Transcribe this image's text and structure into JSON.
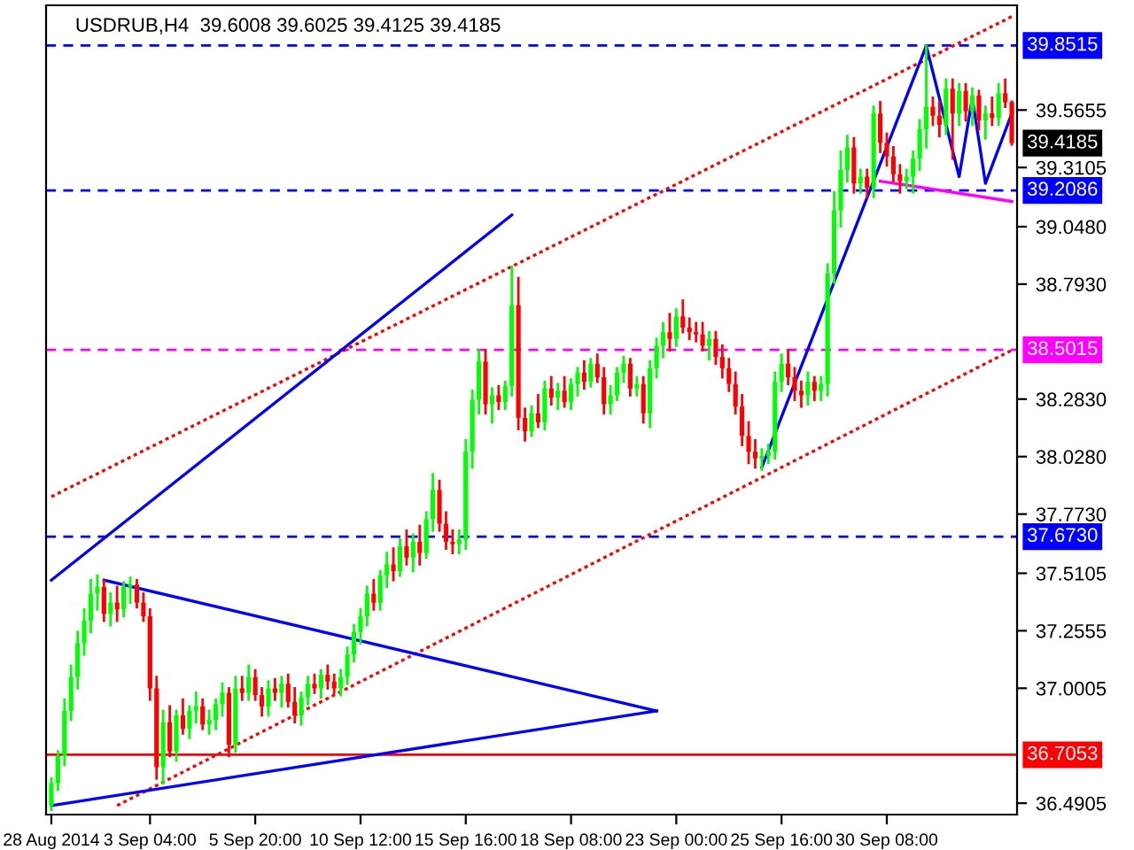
{
  "chart_data": {
    "type": "candlestick",
    "title": "USDRUB,H4  39.6008 39.6025 39.4125 39.4185",
    "categories": [
      "28 Aug 2014",
      null,
      null,
      null,
      null,
      null,
      null,
      null,
      null,
      null,
      null,
      null,
      null,
      null,
      null,
      "3 Sep 04:00",
      null,
      null,
      null,
      null,
      null,
      null,
      null,
      null,
      null,
      null,
      null,
      null,
      null,
      null,
      null,
      "5 Sep 20:00",
      null,
      null,
      null,
      null,
      null,
      null,
      null,
      null,
      null,
      null,
      null,
      null,
      null,
      null,
      null,
      "10 Sep 12:00",
      null,
      null,
      null,
      null,
      null,
      null,
      null,
      null,
      null,
      null,
      null,
      null,
      null,
      null,
      null,
      "15 Sep 16:00",
      null,
      null,
      null,
      null,
      null,
      null,
      null,
      null,
      null,
      null,
      null,
      null,
      null,
      null,
      null,
      "18 Sep 08:00",
      null,
      null,
      null,
      null,
      null,
      null,
      null,
      null,
      null,
      null,
      null,
      null,
      null,
      null,
      null,
      "23 Sep 00:00",
      null,
      null,
      null,
      null,
      null,
      null,
      null,
      null,
      null,
      null,
      null,
      null,
      null,
      null,
      null,
      "25 Sep 16:00",
      null,
      null,
      null,
      null,
      null,
      null,
      null,
      null,
      null,
      null,
      null,
      null,
      null,
      null,
      null,
      "30 Sep 08:00",
      null,
      null,
      null,
      null,
      null,
      null,
      null,
      null,
      null,
      null,
      null,
      null,
      null,
      null,
      null,
      null,
      null,
      null,
      null
    ],
    "ohlc": [
      [
        36.48,
        36.6,
        36.46,
        36.58
      ],
      [
        36.58,
        36.72,
        36.55,
        36.7
      ],
      [
        36.7,
        36.95,
        36.66,
        36.9
      ],
      [
        36.9,
        37.1,
        36.86,
        37.05
      ],
      [
        37.05,
        37.25,
        37.0,
        37.2
      ],
      [
        37.2,
        37.35,
        37.15,
        37.3
      ],
      [
        37.3,
        37.48,
        37.25,
        37.42
      ],
      [
        37.42,
        37.5,
        37.35,
        37.45
      ],
      [
        37.45,
        37.48,
        37.3,
        37.33
      ],
      [
        37.33,
        37.42,
        37.28,
        37.38
      ],
      [
        37.38,
        37.45,
        37.3,
        37.35
      ],
      [
        37.35,
        37.47,
        37.32,
        37.45
      ],
      [
        37.45,
        37.49,
        37.38,
        37.46
      ],
      [
        37.46,
        37.48,
        37.36,
        37.38
      ],
      [
        37.38,
        37.42,
        37.3,
        37.32
      ],
      [
        37.32,
        37.35,
        36.95,
        37.0
      ],
      [
        37.0,
        37.05,
        36.6,
        36.65
      ],
      [
        36.65,
        36.9,
        36.58,
        36.85
      ],
      [
        36.85,
        36.92,
        36.7,
        36.72
      ],
      [
        36.72,
        36.9,
        36.68,
        36.88
      ],
      [
        36.88,
        36.95,
        36.8,
        36.82
      ],
      [
        36.82,
        36.92,
        36.78,
        36.9
      ],
      [
        36.9,
        36.98,
        36.85,
        36.92
      ],
      [
        36.92,
        36.95,
        36.82,
        36.84
      ],
      [
        36.84,
        36.9,
        36.8,
        36.86
      ],
      [
        36.86,
        36.95,
        36.82,
        36.93
      ],
      [
        36.93,
        37.02,
        36.88,
        36.98
      ],
      [
        36.98,
        37.0,
        36.7,
        36.75
      ],
      [
        36.75,
        37.05,
        36.72,
        37.0
      ],
      [
        37.0,
        37.05,
        36.95,
        36.98
      ],
      [
        36.98,
        37.1,
        36.95,
        37.05
      ],
      [
        37.05,
        37.08,
        36.95,
        36.97
      ],
      [
        36.97,
        37.0,
        36.88,
        36.92
      ],
      [
        36.92,
        37.03,
        36.88,
        37.0
      ],
      [
        37.0,
        37.04,
        36.95,
        36.98
      ],
      [
        36.98,
        37.05,
        36.92,
        37.02
      ],
      [
        37.02,
        37.06,
        36.92,
        36.94
      ],
      [
        36.94,
        37.0,
        36.85,
        36.88
      ],
      [
        36.88,
        36.98,
        36.84,
        36.96
      ],
      [
        36.96,
        37.05,
        36.93,
        37.02
      ],
      [
        37.02,
        37.06,
        36.98,
        37.0
      ],
      [
        37.0,
        37.08,
        36.96,
        37.06
      ],
      [
        37.06,
        37.1,
        37.0,
        37.03
      ],
      [
        37.03,
        37.06,
        36.98,
        37.0
      ],
      [
        37.0,
        37.08,
        36.97,
        37.05
      ],
      [
        37.05,
        37.18,
        37.02,
        37.15
      ],
      [
        37.15,
        37.28,
        37.12,
        37.25
      ],
      [
        37.25,
        37.35,
        37.2,
        37.32
      ],
      [
        37.32,
        37.45,
        37.28,
        37.42
      ],
      [
        37.42,
        37.48,
        37.35,
        37.38
      ],
      [
        37.38,
        37.52,
        37.35,
        37.5
      ],
      [
        37.5,
        37.6,
        37.45,
        37.55
      ],
      [
        37.55,
        37.62,
        37.48,
        37.52
      ],
      [
        37.52,
        37.66,
        37.5,
        37.63
      ],
      [
        37.63,
        37.7,
        37.55,
        37.58
      ],
      [
        37.58,
        37.68,
        37.52,
        37.65
      ],
      [
        37.65,
        37.72,
        37.55,
        37.6
      ],
      [
        37.6,
        37.78,
        37.58,
        37.75
      ],
      [
        37.75,
        37.95,
        37.7,
        37.88
      ],
      [
        37.88,
        37.92,
        37.7,
        37.73
      ],
      [
        37.73,
        37.78,
        37.62,
        37.65
      ],
      [
        37.65,
        37.7,
        37.6,
        37.64
      ],
      [
        37.64,
        37.7,
        37.6,
        37.66
      ],
      [
        37.66,
        38.1,
        37.62,
        38.05
      ],
      [
        38.05,
        38.32,
        37.98,
        38.28
      ],
      [
        38.28,
        38.5,
        38.22,
        38.45
      ],
      [
        38.45,
        38.5,
        38.22,
        38.26
      ],
      [
        38.26,
        38.33,
        38.18,
        38.3
      ],
      [
        38.3,
        38.34,
        38.24,
        38.27
      ],
      [
        38.27,
        38.36,
        38.24,
        38.34
      ],
      [
        38.34,
        38.87,
        38.3,
        38.7
      ],
      [
        38.7,
        38.82,
        38.15,
        38.2
      ],
      [
        38.2,
        38.24,
        38.1,
        38.14
      ],
      [
        38.14,
        38.25,
        38.12,
        38.22
      ],
      [
        38.22,
        38.3,
        38.16,
        38.18
      ],
      [
        38.18,
        38.36,
        38.15,
        38.33
      ],
      [
        38.33,
        38.38,
        38.26,
        38.29
      ],
      [
        38.29,
        38.35,
        38.24,
        38.32
      ],
      [
        38.32,
        38.38,
        38.25,
        38.27
      ],
      [
        38.27,
        38.37,
        38.24,
        38.35
      ],
      [
        38.35,
        38.42,
        38.3,
        38.4
      ],
      [
        38.4,
        38.45,
        38.33,
        38.36
      ],
      [
        38.36,
        38.46,
        38.34,
        38.44
      ],
      [
        38.44,
        38.48,
        38.36,
        38.38
      ],
      [
        38.38,
        38.42,
        38.22,
        38.26
      ],
      [
        38.26,
        38.34,
        38.22,
        38.3
      ],
      [
        38.3,
        38.42,
        38.28,
        38.4
      ],
      [
        38.4,
        38.47,
        38.36,
        38.44
      ],
      [
        38.44,
        38.46,
        38.3,
        38.33
      ],
      [
        38.33,
        38.38,
        38.3,
        38.35
      ],
      [
        38.35,
        38.38,
        38.18,
        38.22
      ],
      [
        38.22,
        38.45,
        38.16,
        38.42
      ],
      [
        38.42,
        38.55,
        38.38,
        38.52
      ],
      [
        38.52,
        38.62,
        38.47,
        38.58
      ],
      [
        38.58,
        38.66,
        38.5,
        38.55
      ],
      [
        38.55,
        38.68,
        38.52,
        38.65
      ],
      [
        38.65,
        38.72,
        38.58,
        38.6
      ],
      [
        38.6,
        38.64,
        38.55,
        38.58
      ],
      [
        38.58,
        38.62,
        38.54,
        38.57
      ],
      [
        38.57,
        38.62,
        38.5,
        38.52
      ],
      [
        38.52,
        38.58,
        38.46,
        38.55
      ],
      [
        38.55,
        38.58,
        38.44,
        38.47
      ],
      [
        38.47,
        38.52,
        38.38,
        38.42
      ],
      [
        38.42,
        38.46,
        38.32,
        38.35
      ],
      [
        38.35,
        38.4,
        38.22,
        38.25
      ],
      [
        38.25,
        38.3,
        38.08,
        38.12
      ],
      [
        38.12,
        38.18,
        38.0,
        38.05
      ],
      [
        38.05,
        38.1,
        37.98,
        38.02
      ],
      [
        38.02,
        38.06,
        37.97,
        38.03
      ],
      [
        38.03,
        38.08,
        38.0,
        38.05
      ],
      [
        38.05,
        38.4,
        38.02,
        38.36
      ],
      [
        38.36,
        38.48,
        38.32,
        38.44
      ],
      [
        38.44,
        38.5,
        38.35,
        38.38
      ],
      [
        38.38,
        38.42,
        38.28,
        38.32
      ],
      [
        38.32,
        38.36,
        38.25,
        38.3
      ],
      [
        38.3,
        38.4,
        38.26,
        38.36
      ],
      [
        38.36,
        38.38,
        38.28,
        38.32
      ],
      [
        38.32,
        38.38,
        38.28,
        38.35
      ],
      [
        38.35,
        38.88,
        38.3,
        38.84
      ],
      [
        38.84,
        39.2,
        38.8,
        39.12
      ],
      [
        39.12,
        39.38,
        39.05,
        39.3
      ],
      [
        39.3,
        39.45,
        39.25,
        39.4
      ],
      [
        39.4,
        39.44,
        39.2,
        39.24
      ],
      [
        39.24,
        39.3,
        39.2,
        39.27
      ],
      [
        39.27,
        39.3,
        39.18,
        39.22
      ],
      [
        39.22,
        39.58,
        39.18,
        39.55
      ],
      [
        39.55,
        39.6,
        39.38,
        39.42
      ],
      [
        39.42,
        39.46,
        39.32,
        39.36
      ],
      [
        39.36,
        39.4,
        39.25,
        39.28
      ],
      [
        39.28,
        39.32,
        39.2,
        39.25
      ],
      [
        39.25,
        39.3,
        39.22,
        39.27
      ],
      [
        39.27,
        39.38,
        39.2,
        39.35
      ],
      [
        39.35,
        39.52,
        39.3,
        39.48
      ],
      [
        39.48,
        39.85,
        39.4,
        39.58
      ],
      [
        39.58,
        39.62,
        39.5,
        39.54
      ],
      [
        39.54,
        39.6,
        39.45,
        39.5
      ],
      [
        39.5,
        39.7,
        39.46,
        39.66
      ],
      [
        39.66,
        39.7,
        39.35,
        39.55
      ],
      [
        39.55,
        39.68,
        39.5,
        39.65
      ],
      [
        39.65,
        39.68,
        39.52,
        39.56
      ],
      [
        39.56,
        39.66,
        39.5,
        39.63
      ],
      [
        39.63,
        39.65,
        39.48,
        39.52
      ],
      [
        39.52,
        39.58,
        39.44,
        39.55
      ],
      [
        39.55,
        39.62,
        39.5,
        39.53
      ],
      [
        39.53,
        39.68,
        39.5,
        39.64
      ],
      [
        39.64,
        39.7,
        39.58,
        39.6
      ],
      [
        39.6008,
        39.6025,
        39.4125,
        39.4185
      ]
    ],
    "series": [
      {
        "type": "line",
        "color": "#ff0000",
        "line_style": "dotted",
        "values": [
          37.85,
          null,
          null,
          null,
          null,
          null,
          null,
          null,
          null,
          null,
          null,
          null,
          null,
          null,
          null,
          null,
          null,
          null,
          null,
          null,
          null,
          null,
          null,
          null,
          null,
          null,
          null,
          null,
          null,
          null,
          null,
          null,
          null,
          null,
          null,
          null,
          null,
          null,
          null,
          null,
          null,
          null,
          null,
          null,
          null,
          null,
          null,
          null,
          null,
          null,
          null,
          null,
          null,
          null,
          null,
          null,
          null,
          null,
          null,
          null,
          null,
          null,
          null,
          null,
          null,
          null,
          null,
          null,
          null,
          null,
          null,
          null,
          null,
          null,
          null,
          null,
          null,
          null,
          null,
          null,
          null,
          null,
          null,
          null,
          null,
          null,
          null,
          null,
          null,
          null,
          null,
          null,
          null,
          null,
          null,
          null,
          null,
          null,
          null,
          null,
          null,
          null,
          null,
          null,
          null,
          null,
          null,
          null,
          null,
          null,
          null,
          null,
          null,
          null,
          null,
          null,
          null,
          null,
          null,
          null,
          null,
          null,
          null,
          null,
          null,
          null,
          null,
          null,
          null,
          null,
          null,
          null,
          null,
          null,
          null,
          null,
          null,
          null,
          null,
          null,
          null,
          null,
          null,
          null,
          null,
          null,
          39.98
        ]
      },
      {
        "type": "line",
        "color": "#ff0000",
        "line_style": "dotted",
        "values": [
          null,
          null,
          null,
          null,
          null,
          null,
          null,
          null,
          null,
          null,
          36.48,
          null,
          null,
          null,
          null,
          null,
          null,
          null,
          null,
          null,
          null,
          null,
          null,
          null,
          null,
          null,
          null,
          null,
          null,
          null,
          null,
          null,
          null,
          null,
          null,
          null,
          null,
          null,
          null,
          null,
          null,
          null,
          null,
          null,
          null,
          null,
          null,
          null,
          null,
          null,
          null,
          null,
          null,
          null,
          null,
          null,
          null,
          null,
          null,
          null,
          null,
          null,
          null,
          null,
          null,
          null,
          null,
          null,
          null,
          null,
          null,
          null,
          null,
          null,
          null,
          null,
          null,
          null,
          null,
          null,
          null,
          null,
          null,
          null,
          null,
          null,
          null,
          null,
          null,
          null,
          null,
          null,
          null,
          null,
          null,
          null,
          null,
          null,
          null,
          null,
          null,
          null,
          null,
          null,
          null,
          null,
          null,
          null,
          null,
          null,
          null,
          null,
          null,
          null,
          null,
          null,
          null,
          null,
          null,
          null,
          null,
          null,
          null,
          null,
          null,
          null,
          null,
          null,
          null,
          null,
          null,
          null,
          null,
          null,
          null,
          null,
          null,
          null,
          null,
          null,
          null,
          null,
          null,
          null,
          null,
          null,
          38.5
        ]
      },
      {
        "type": "line",
        "color": "#0000ff",
        "line_style": "solid",
        "values": [
          37.48,
          null,
          null,
          null,
          null,
          null,
          null,
          null,
          null,
          null,
          null,
          null,
          null,
          null,
          null,
          null,
          null,
          null,
          null,
          null,
          null,
          null,
          null,
          null,
          null,
          null,
          null,
          null,
          null,
          null,
          null,
          null,
          null,
          null,
          null,
          null,
          null,
          null,
          null,
          null,
          null,
          null,
          null,
          null,
          null,
          null,
          null,
          null,
          null,
          null,
          null,
          null,
          null,
          null,
          null,
          null,
          null,
          null,
          null,
          null,
          null,
          null,
          null,
          null,
          null,
          null,
          null,
          null,
          null,
          null,
          39.1,
          null,
          null,
          null,
          null,
          null,
          null,
          null,
          null,
          null,
          null,
          null,
          null,
          null,
          null,
          null,
          null,
          null,
          null,
          null,
          null,
          null,
          null,
          null,
          null,
          null,
          null,
          null,
          null,
          null,
          null,
          null,
          null,
          null,
          null,
          null,
          null,
          null,
          null,
          null,
          null,
          null,
          null,
          null,
          null,
          null,
          null,
          null,
          null,
          null,
          null,
          null,
          null,
          null,
          null,
          null,
          null,
          null,
          null,
          null,
          null,
          null,
          null,
          null,
          null,
          null,
          null,
          null,
          null,
          null,
          null,
          null,
          null,
          null,
          null,
          null,
          null
        ]
      },
      {
        "type": "line",
        "color": "#0000ff",
        "line_style": "solid",
        "values": [
          null,
          null,
          null,
          null,
          null,
          null,
          null,
          null,
          37.48,
          null,
          null,
          null,
          null,
          null,
          null,
          null,
          null,
          null,
          null,
          null,
          null,
          null,
          null,
          null,
          null,
          null,
          null,
          null,
          null,
          null,
          null,
          null,
          null,
          null,
          null,
          null,
          null,
          null,
          null,
          null,
          null,
          null,
          null,
          null,
          null,
          null,
          null,
          null,
          null,
          null,
          null,
          null,
          null,
          null,
          null,
          null,
          null,
          null,
          null,
          null,
          null,
          null,
          null,
          null,
          null,
          null,
          null,
          null,
          null,
          null,
          null,
          null,
          null,
          null,
          null,
          null,
          null,
          null,
          null,
          null,
          null,
          null,
          null,
          null,
          null,
          null,
          null,
          null,
          null,
          null,
          null,
          null,
          36.9,
          null,
          null,
          null,
          null,
          null,
          null,
          null,
          null,
          null,
          null,
          null,
          null,
          null,
          null,
          null,
          null,
          null,
          null,
          null,
          null,
          null,
          null,
          null,
          null,
          null,
          null,
          null,
          null,
          null,
          null,
          null,
          null,
          null,
          null,
          null,
          null,
          null,
          null,
          null,
          null,
          null,
          null,
          null,
          null,
          null,
          null,
          null,
          null,
          null,
          null,
          null,
          null,
          null,
          null
        ]
      },
      {
        "type": "line",
        "color": "#0000ff",
        "line_style": "solid",
        "values": [
          36.48,
          null,
          null,
          null,
          null,
          null,
          null,
          null,
          null,
          null,
          null,
          null,
          null,
          null,
          null,
          null,
          null,
          null,
          null,
          null,
          null,
          null,
          null,
          null,
          null,
          null,
          null,
          null,
          null,
          null,
          null,
          null,
          null,
          null,
          null,
          null,
          null,
          null,
          null,
          null,
          null,
          null,
          null,
          null,
          null,
          null,
          null,
          null,
          null,
          null,
          null,
          null,
          null,
          null,
          null,
          null,
          null,
          null,
          null,
          null,
          null,
          null,
          null,
          null,
          null,
          null,
          null,
          null,
          null,
          null,
          null,
          null,
          null,
          null,
          null,
          null,
          null,
          null,
          null,
          null,
          null,
          null,
          null,
          null,
          null,
          null,
          null,
          null,
          null,
          null,
          null,
          null,
          36.9,
          null,
          null,
          null,
          null,
          null,
          null,
          null,
          null,
          null,
          null,
          null,
          null,
          null,
          null,
          null,
          null,
          null,
          null,
          null,
          null,
          null,
          null,
          null,
          null,
          null,
          null,
          null,
          null,
          null,
          null,
          null,
          null,
          null,
          null,
          null,
          null,
          null,
          null,
          null,
          null,
          null,
          null,
          null,
          null,
          null,
          null,
          null,
          null,
          null,
          null,
          null,
          null,
          null,
          null
        ]
      },
      {
        "type": "line",
        "color": "#0000ff",
        "line_style": "solid",
        "values": [
          null,
          null,
          null,
          null,
          null,
          null,
          null,
          null,
          null,
          null,
          null,
          null,
          null,
          null,
          null,
          null,
          null,
          null,
          null,
          null,
          null,
          null,
          null,
          null,
          null,
          null,
          null,
          null,
          null,
          null,
          null,
          null,
          null,
          null,
          null,
          null,
          null,
          null,
          null,
          null,
          null,
          null,
          null,
          null,
          null,
          null,
          null,
          null,
          null,
          null,
          null,
          null,
          null,
          null,
          null,
          null,
          null,
          null,
          null,
          null,
          null,
          null,
          null,
          null,
          null,
          null,
          null,
          null,
          null,
          null,
          null,
          null,
          null,
          null,
          null,
          null,
          null,
          null,
          null,
          null,
          null,
          null,
          null,
          null,
          null,
          null,
          null,
          null,
          null,
          null,
          null,
          null,
          null,
          null,
          null,
          null,
          null,
          null,
          null,
          null,
          null,
          null,
          null,
          null,
          null,
          null,
          null,
          null,
          37.98,
          null,
          null,
          null,
          null,
          null,
          null,
          null,
          null,
          null,
          null,
          null,
          null,
          null,
          null,
          null,
          null,
          null,
          null,
          null,
          null,
          null,
          null,
          null,
          null,
          39.85,
          null,
          null,
          null,
          null,
          39.27,
          null,
          39.62,
          null,
          39.24,
          null,
          null,
          null,
          39.55
        ]
      },
      {
        "type": "line",
        "color": "#ff00ff",
        "line_style": "solid",
        "values": [
          null,
          null,
          null,
          null,
          null,
          null,
          null,
          null,
          null,
          null,
          null,
          null,
          null,
          null,
          null,
          null,
          null,
          null,
          null,
          null,
          null,
          null,
          null,
          null,
          null,
          null,
          null,
          null,
          null,
          null,
          null,
          null,
          null,
          null,
          null,
          null,
          null,
          null,
          null,
          null,
          null,
          null,
          null,
          null,
          null,
          null,
          null,
          null,
          null,
          null,
          null,
          null,
          null,
          null,
          null,
          null,
          null,
          null,
          null,
          null,
          null,
          null,
          null,
          null,
          null,
          null,
          null,
          null,
          null,
          null,
          null,
          null,
          null,
          null,
          null,
          null,
          null,
          null,
          null,
          null,
          null,
          null,
          null,
          null,
          null,
          null,
          null,
          null,
          null,
          null,
          null,
          null,
          null,
          null,
          null,
          null,
          null,
          null,
          null,
          null,
          null,
          null,
          null,
          null,
          null,
          null,
          null,
          null,
          null,
          null,
          null,
          null,
          null,
          null,
          null,
          null,
          null,
          null,
          null,
          null,
          null,
          null,
          null,
          null,
          null,
          null,
          39.25,
          null,
          null,
          null,
          null,
          null,
          null,
          null,
          null,
          null,
          null,
          null,
          null,
          null,
          null,
          null,
          null,
          null,
          null,
          null,
          39.16
        ]
      }
    ],
    "ylim": [
      36.44,
      40.03
    ],
    "yticks": [
      {
        "value": 36.4905,
        "label": "36.4905"
      },
      {
        "value": 37.0005,
        "label": "37.0005"
      },
      {
        "value": 37.2555,
        "label": "37.2555"
      },
      {
        "value": 37.5105,
        "label": "37.5105"
      },
      {
        "value": 37.773,
        "label": "37.7730"
      },
      {
        "value": 38.028,
        "label": "38.0280"
      },
      {
        "value": 38.283,
        "label": "38.2830"
      },
      {
        "value": 38.793,
        "label": "38.7930"
      },
      {
        "value": 39.048,
        "label": "39.0480"
      },
      {
        "value": 39.3105,
        "label": "39.3105"
      },
      {
        "value": 39.5655,
        "label": "39.5655"
      }
    ],
    "ref_lines": [
      {
        "axis": "y",
        "value": 39.8515,
        "label": "39.8515",
        "color": "#0000ff",
        "line_style": "dashed"
      },
      {
        "axis": "y",
        "value": 39.2086,
        "label": "39.2086",
        "color": "#0000ff",
        "line_style": "dashed"
      },
      {
        "axis": "y",
        "value": 38.5015,
        "label": "38.5015",
        "color": "#ff00ff",
        "line_style": "dashed"
      },
      {
        "axis": "y",
        "value": 37.673,
        "label": "37.6730",
        "color": "#0000ff",
        "line_style": "dashed"
      },
      {
        "axis": "y",
        "value": 36.7053,
        "label": "36.7053",
        "color": "#ff0000",
        "line_style": "solid"
      }
    ],
    "annotations": [
      "39.4185"
    ],
    "grid": false,
    "legend": false
  }
}
